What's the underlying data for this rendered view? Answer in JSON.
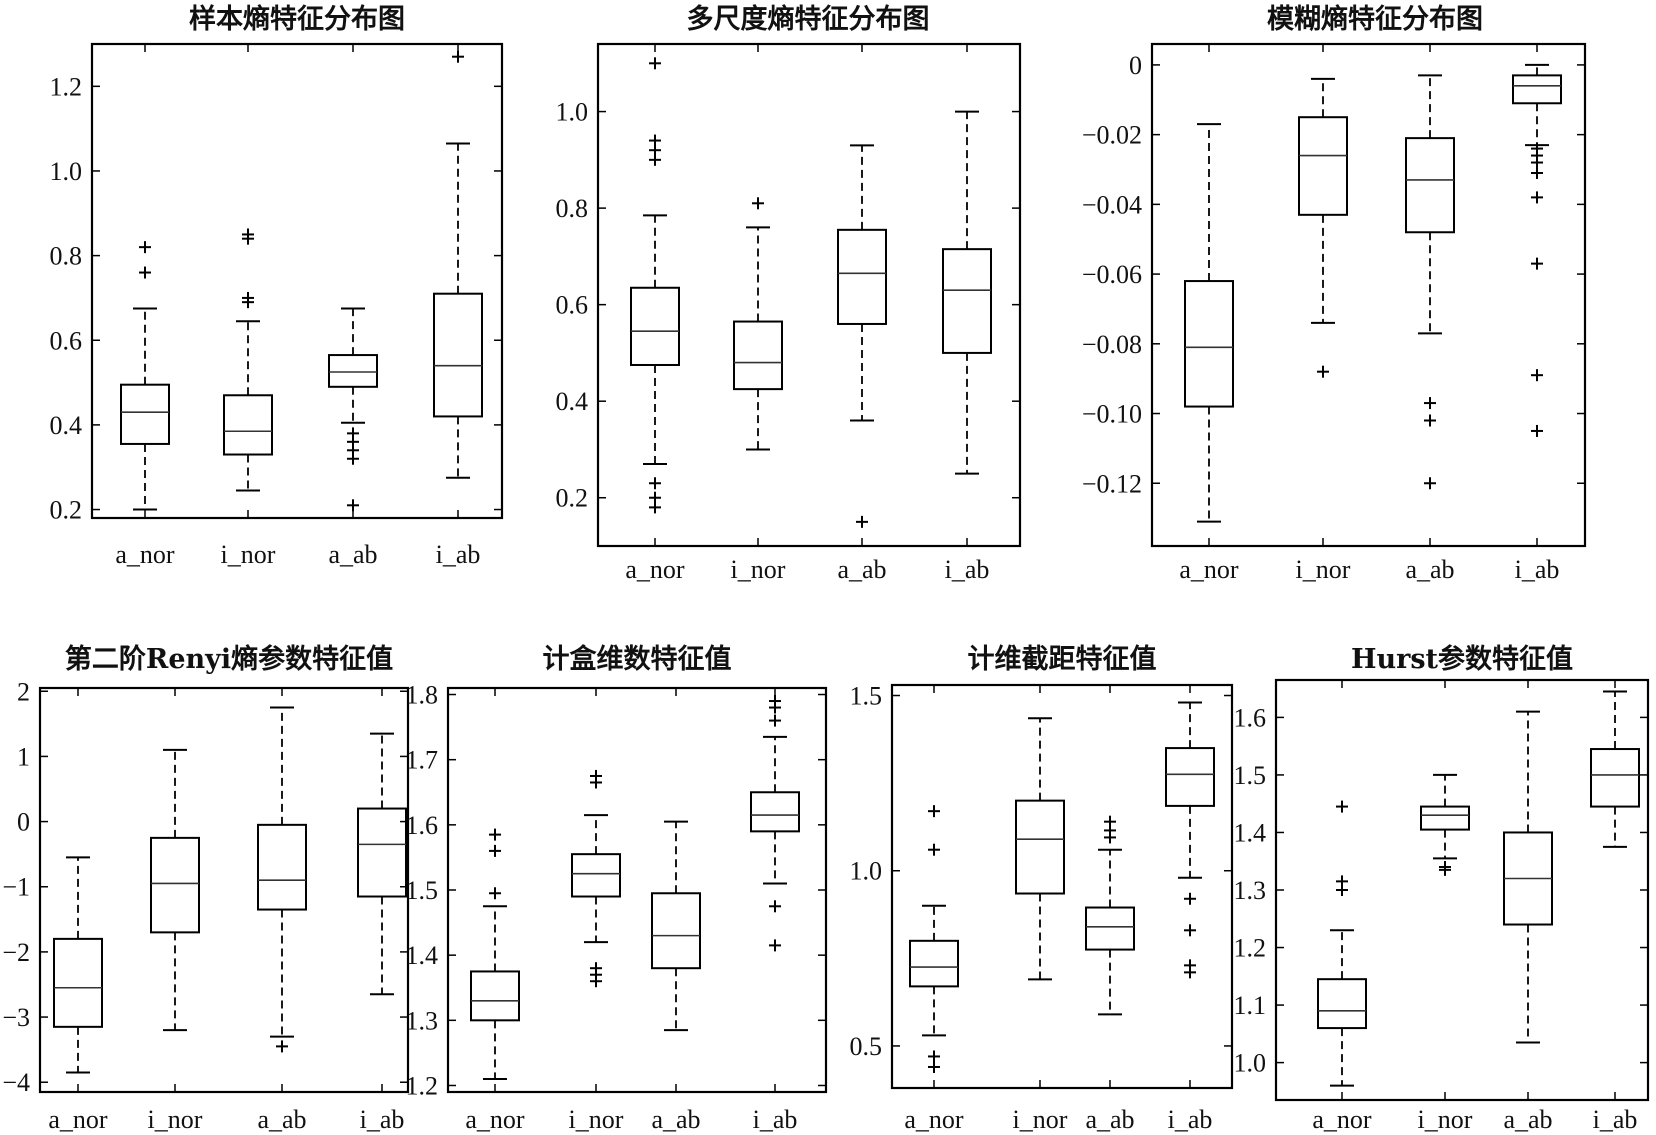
{
  "chart_data": [
    {
      "type": "box",
      "title": "样本熵特征分布图",
      "categories": [
        "a_nor",
        "i_nor",
        "a_ab",
        "i_ab"
      ],
      "yticks": [
        "0.2",
        "0.4",
        "0.6",
        "0.8",
        "1.0",
        "1.2"
      ],
      "ylim": [
        0.18,
        1.3
      ],
      "boxes": [
        {
          "whislo": 0.2,
          "q1": 0.355,
          "med": 0.43,
          "q3": 0.495,
          "whishi": 0.675,
          "fliers": [
            0.76,
            0.82
          ]
        },
        {
          "whislo": 0.245,
          "q1": 0.33,
          "med": 0.385,
          "q3": 0.47,
          "whishi": 0.645,
          "fliers": [
            0.69,
            0.7,
            0.84,
            0.85
          ]
        },
        {
          "whislo": 0.405,
          "q1": 0.49,
          "med": 0.525,
          "q3": 0.565,
          "whishi": 0.675,
          "fliers": [
            0.21,
            0.32,
            0.34,
            0.36,
            0.38
          ]
        },
        {
          "whislo": 0.275,
          "q1": 0.42,
          "med": 0.54,
          "q3": 0.71,
          "whishi": 1.065,
          "fliers": [
            1.27
          ]
        }
      ]
    },
    {
      "type": "box",
      "title": "多尺度熵特征分布图",
      "categories": [
        "a_nor",
        "i_nor",
        "a_ab",
        "i_ab"
      ],
      "yticks": [
        "0.2",
        "0.4",
        "0.6",
        "0.8",
        "1.0"
      ],
      "ylim": [
        0.1,
        1.14
      ],
      "boxes": [
        {
          "whislo": 0.27,
          "q1": 0.475,
          "med": 0.545,
          "q3": 0.635,
          "whishi": 0.785,
          "fliers": [
            0.18,
            0.2,
            0.23,
            0.9,
            0.92,
            0.94,
            1.1
          ]
        },
        {
          "whislo": 0.3,
          "q1": 0.425,
          "med": 0.48,
          "q3": 0.565,
          "whishi": 0.76,
          "fliers": [
            0.81
          ]
        },
        {
          "whislo": 0.36,
          "q1": 0.56,
          "med": 0.665,
          "q3": 0.755,
          "whishi": 0.93,
          "fliers": [
            0.15
          ]
        },
        {
          "whislo": 0.25,
          "q1": 0.5,
          "med": 0.63,
          "q3": 0.715,
          "whishi": 1.0,
          "fliers": []
        }
      ]
    },
    {
      "type": "box",
      "title": "模糊熵特征分布图",
      "categories": [
        "a_nor",
        "i_nor",
        "a_ab",
        "i_ab"
      ],
      "yticks": [
        "0",
        "−0.02",
        "−0.04",
        "−0.06",
        "−0.08",
        "−0.10",
        "−0.12"
      ],
      "ylim": [
        -0.138,
        0.006
      ],
      "boxes": [
        {
          "whislo": -0.131,
          "q1": -0.098,
          "med": -0.081,
          "q3": -0.062,
          "whishi": -0.017,
          "fliers": []
        },
        {
          "whislo": -0.074,
          "q1": -0.043,
          "med": -0.026,
          "q3": -0.015,
          "whishi": -0.004,
          "fliers": [
            -0.088
          ]
        },
        {
          "whislo": -0.077,
          "q1": -0.048,
          "med": -0.033,
          "q3": -0.021,
          "whishi": -0.003,
          "fliers": [
            -0.097,
            -0.102,
            -0.12
          ]
        },
        {
          "whislo": -0.023,
          "q1": -0.011,
          "med": -0.006,
          "q3": -0.003,
          "whishi": 0.0,
          "fliers": [
            -0.024,
            -0.026,
            -0.028,
            -0.031,
            -0.038,
            -0.057,
            -0.089,
            -0.105
          ]
        }
      ]
    },
    {
      "type": "box",
      "title": "第二阶Renyi熵参数特征值",
      "categories": [
        "a_nor",
        "i_nor",
        "a_ab",
        "i_ab"
      ],
      "yticks": [
        "2",
        "1",
        "0",
        "−1",
        "−2",
        "−3",
        "−4"
      ],
      "ylim": [
        -4.15,
        2.05
      ],
      "boxes": [
        {
          "whislo": -3.85,
          "q1": -3.15,
          "med": -2.55,
          "q3": -1.8,
          "whishi": -0.55,
          "fliers": []
        },
        {
          "whislo": -3.2,
          "q1": -1.7,
          "med": -0.95,
          "q3": -0.25,
          "whishi": 1.1,
          "fliers": []
        },
        {
          "whislo": -3.3,
          "q1": -1.35,
          "med": -0.9,
          "q3": -0.05,
          "whishi": 1.75,
          "fliers": [
            -3.45
          ]
        },
        {
          "whislo": -2.65,
          "q1": -1.15,
          "med": -0.35,
          "q3": 0.2,
          "whishi": 1.35,
          "fliers": []
        }
      ]
    },
    {
      "type": "box",
      "title": "计盒维数特征值",
      "categories": [
        "a_nor",
        "i_nor",
        "a_ab",
        "i_ab"
      ],
      "yticks": [
        "1.2",
        "1.3",
        "1.4",
        "1.5",
        "1.6",
        "1.7",
        "1.8"
      ],
      "ylim": [
        1.19,
        1.81
      ],
      "boxes": [
        {
          "whislo": 1.21,
          "q1": 1.3,
          "med": 1.33,
          "q3": 1.375,
          "whishi": 1.475,
          "fliers": [
            1.495,
            1.56,
            1.585
          ]
        },
        {
          "whislo": 1.42,
          "q1": 1.49,
          "med": 1.525,
          "q3": 1.555,
          "whishi": 1.615,
          "fliers": [
            1.36,
            1.37,
            1.38,
            1.665,
            1.675
          ]
        },
        {
          "whislo": 1.285,
          "q1": 1.38,
          "med": 1.43,
          "q3": 1.495,
          "whishi": 1.605,
          "fliers": []
        },
        {
          "whislo": 1.51,
          "q1": 1.59,
          "med": 1.615,
          "q3": 1.65,
          "whishi": 1.735,
          "fliers": [
            1.415,
            1.475,
            1.76,
            1.78,
            1.79
          ]
        }
      ]
    },
    {
      "type": "box",
      "title": "计维截距特征值",
      "categories": [
        "a_nor",
        "i_nor",
        "a_ab",
        "i_ab"
      ],
      "yticks": [
        "0.5",
        "1.0",
        "1.5"
      ],
      "ylim": [
        0.38,
        1.53
      ],
      "boxes": [
        {
          "whislo": 0.53,
          "q1": 0.67,
          "med": 0.725,
          "q3": 0.8,
          "whishi": 0.9,
          "fliers": [
            0.44,
            0.47,
            1.06,
            1.17
          ]
        },
        {
          "whislo": 0.69,
          "q1": 0.935,
          "med": 1.09,
          "q3": 1.2,
          "whishi": 1.435,
          "fliers": []
        },
        {
          "whislo": 0.59,
          "q1": 0.775,
          "med": 0.84,
          "q3": 0.895,
          "whishi": 1.06,
          "fliers": [
            1.095,
            1.115,
            1.14
          ]
        },
        {
          "whislo": 0.98,
          "q1": 1.185,
          "med": 1.275,
          "q3": 1.35,
          "whishi": 1.48,
          "fliers": [
            0.71,
            0.73,
            0.83,
            0.92
          ]
        }
      ]
    },
    {
      "type": "box",
      "title": "Hurst参数特征值",
      "categories": [
        "a_nor",
        "i_nor",
        "a_ab",
        "i_ab"
      ],
      "yticks": [
        "1.0",
        "1.1",
        "1.2",
        "1.3",
        "1.4",
        "1.5",
        "1.6"
      ],
      "ylim": [
        0.935,
        1.665
      ],
      "boxes": [
        {
          "whislo": 0.96,
          "q1": 1.06,
          "med": 1.09,
          "q3": 1.145,
          "whishi": 1.23,
          "fliers": [
            1.3,
            1.315,
            1.445
          ]
        },
        {
          "whislo": 1.355,
          "q1": 1.405,
          "med": 1.43,
          "q3": 1.445,
          "whishi": 1.5,
          "fliers": [
            1.335,
            1.34
          ]
        },
        {
          "whislo": 1.035,
          "q1": 1.24,
          "med": 1.32,
          "q3": 1.4,
          "whishi": 1.61,
          "fliers": []
        },
        {
          "whislo": 1.375,
          "q1": 1.445,
          "med": 1.5,
          "q3": 1.545,
          "whishi": 1.645,
          "fliers": []
        }
      ]
    }
  ]
}
